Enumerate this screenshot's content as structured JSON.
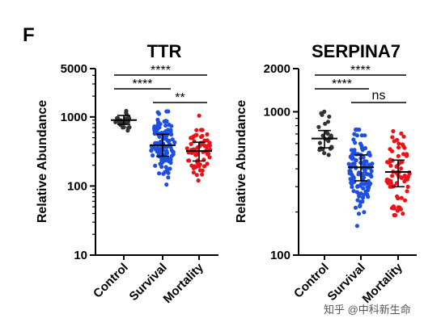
{
  "panel_label": "F",
  "watermark": "知乎 @中科新生命",
  "colors": {
    "Control": "#333333",
    "Survival": "#1f4fe0",
    "Mortality": "#e8141a"
  },
  "chart_data": [
    {
      "type": "scatter",
      "title": "TTR",
      "ylabel": "Relative Abundance",
      "yscale": "log",
      "ylim": [
        10,
        5000
      ],
      "yticks": [
        {
          "value": 10,
          "label": "10"
        },
        {
          "value": 100,
          "label": "100"
        },
        {
          "value": 1000,
          "label": "1000"
        },
        {
          "value": 5000,
          "label": "5000"
        }
      ],
      "categories": [
        "Control",
        "Survival",
        "Mortality"
      ],
      "series": [
        {
          "name": "Control",
          "median": 900,
          "q1": 780,
          "q3": 1050,
          "min": 600,
          "max": 1400,
          "n": 24
        },
        {
          "name": "Survival",
          "median": 390,
          "q1": 270,
          "q3": 560,
          "min": 90,
          "max": 1200,
          "n": 120
        },
        {
          "name": "Mortality",
          "median": 320,
          "q1": 230,
          "q3": 430,
          "min": 120,
          "max": 1500,
          "n": 70
        }
      ],
      "comparisons": [
        {
          "from": "Control",
          "to": "Mortality",
          "label": "****"
        },
        {
          "from": "Control",
          "to": "Survival",
          "label": "****"
        },
        {
          "from": "Survival",
          "to": "Mortality",
          "label": "**"
        }
      ]
    },
    {
      "type": "scatter",
      "title": "SERPINA7",
      "ylabel": "Relative Abundance",
      "yscale": "log",
      "ylim": [
        100,
        2000
      ],
      "yticks": [
        {
          "value": 100,
          "label": "100"
        },
        {
          "value": 1000,
          "label": "1000"
        },
        {
          "value": 2000,
          "label": "2000"
        }
      ],
      "categories": [
        "Control",
        "Survival",
        "Mortality"
      ],
      "series": [
        {
          "name": "Control",
          "median": 650,
          "q1": 560,
          "q3": 740,
          "min": 420,
          "max": 1000,
          "n": 24
        },
        {
          "name": "Survival",
          "median": 410,
          "q1": 330,
          "q3": 500,
          "min": 160,
          "max": 750,
          "n": 120
        },
        {
          "name": "Mortality",
          "median": 380,
          "q1": 300,
          "q3": 460,
          "min": 190,
          "max": 950,
          "n": 75
        }
      ],
      "comparisons": [
        {
          "from": "Control",
          "to": "Mortality",
          "label": "****"
        },
        {
          "from": "Control",
          "to": "Survival",
          "label": "****"
        },
        {
          "from": "Survival",
          "to": "Mortality",
          "label": "ns"
        }
      ]
    }
  ]
}
